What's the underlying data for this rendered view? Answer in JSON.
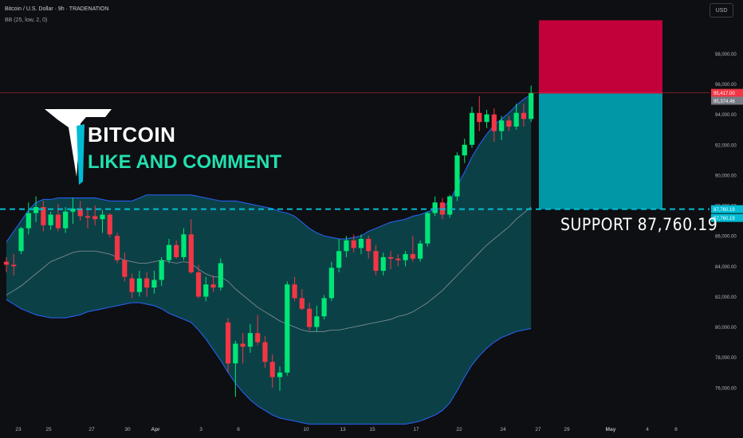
{
  "header": {
    "title": "Bitcoin / U.S. Dollar · 9h · TRADENATION",
    "indicator": "BB (25, low, 2, 0)",
    "currency": "USD"
  },
  "watermark": {
    "title": "BITCOIN",
    "subtitle": "LIKE AND COMMENT"
  },
  "support_label": "SUPPORT  87,760.19",
  "price_scale_badges": [
    {
      "label": "95,417.00",
      "value": 95417,
      "color": "#f23645"
    },
    {
      "label": "95,374.46",
      "value": 95374.46,
      "color": "#787b86"
    },
    {
      "label": "87,760.19",
      "value": 87760.19,
      "color": "#00bcd4"
    },
    {
      "label": "87,760.19",
      "value": 87760.19,
      "color": "#00bcd4"
    }
  ],
  "colors": {
    "up": "#22ab94",
    "up_bright": "#00e676",
    "down": "#f23645",
    "band_fill": "#0b4a50",
    "band_line": "#2962ff",
    "support_line": "#00bcd4",
    "target_zone": "#089981",
    "stop_zone": "#c2003a",
    "entry_zone": "#0097a7"
  },
  "chart_data": {
    "type": "candlestick",
    "instrument": "Bitcoin / U.S. Dollar",
    "timeframe": "9h",
    "y_ticks": [
      "76,000.00",
      "78,000.00",
      "80,000.00",
      "82,000.00",
      "84,000.00",
      "86,000.00",
      "88,000.00",
      "90,000.00",
      "92,000.00",
      "94,000.00",
      "96,000.00",
      "98,000.00"
    ],
    "ylim": [
      74000,
      100800
    ],
    "x_ticks": [
      "23",
      "25",
      "27",
      "30",
      "Apr",
      "3",
      "6",
      "10",
      "13",
      "15",
      "17",
      "22",
      "24",
      "27",
      "29",
      "May",
      "4",
      "6"
    ],
    "candles": [
      {
        "o": 84300,
        "h": 84600,
        "l": 83600,
        "c": 84100
      },
      {
        "o": 84100,
        "h": 84800,
        "l": 83400,
        "c": 84000
      },
      {
        "o": 85000,
        "h": 86600,
        "l": 84800,
        "c": 86500
      },
      {
        "o": 86500,
        "h": 88200,
        "l": 86100,
        "c": 87500
      },
      {
        "o": 87500,
        "h": 88600,
        "l": 86900,
        "c": 87900
      },
      {
        "o": 87900,
        "h": 88300,
        "l": 86300,
        "c": 86700
      },
      {
        "o": 86700,
        "h": 87600,
        "l": 86400,
        "c": 87400
      },
      {
        "o": 87400,
        "h": 88100,
        "l": 86300,
        "c": 86500
      },
      {
        "o": 86500,
        "h": 87900,
        "l": 86200,
        "c": 87600
      },
      {
        "o": 87600,
        "h": 88500,
        "l": 86800,
        "c": 87800
      },
      {
        "o": 87800,
        "h": 88300,
        "l": 87000,
        "c": 87300
      },
      {
        "o": 87300,
        "h": 87900,
        "l": 86500,
        "c": 87200
      },
      {
        "o": 87300,
        "h": 88000,
        "l": 86700,
        "c": 87100
      },
      {
        "o": 87100,
        "h": 87700,
        "l": 86200,
        "c": 87400
      },
      {
        "o": 87400,
        "h": 87500,
        "l": 85900,
        "c": 86100
      },
      {
        "o": 86000,
        "h": 86200,
        "l": 84200,
        "c": 84400
      },
      {
        "o": 84400,
        "h": 84900,
        "l": 83000,
        "c": 83300
      },
      {
        "o": 83200,
        "h": 83500,
        "l": 81900,
        "c": 82300
      },
      {
        "o": 82300,
        "h": 83700,
        "l": 82000,
        "c": 83200
      },
      {
        "o": 83200,
        "h": 83600,
        "l": 82000,
        "c": 82600
      },
      {
        "o": 82600,
        "h": 83700,
        "l": 82200,
        "c": 83100
      },
      {
        "o": 83100,
        "h": 84600,
        "l": 82700,
        "c": 84400
      },
      {
        "o": 84400,
        "h": 85800,
        "l": 84200,
        "c": 85400
      },
      {
        "o": 85400,
        "h": 85700,
        "l": 84500,
        "c": 84600
      },
      {
        "o": 84600,
        "h": 86500,
        "l": 84400,
        "c": 86100
      },
      {
        "o": 86100,
        "h": 87100,
        "l": 83500,
        "c": 83600
      },
      {
        "o": 83600,
        "h": 84100,
        "l": 81900,
        "c": 82000
      },
      {
        "o": 82000,
        "h": 83300,
        "l": 81700,
        "c": 82800
      },
      {
        "o": 82800,
        "h": 83400,
        "l": 82300,
        "c": 82600
      },
      {
        "o": 82600,
        "h": 84500,
        "l": 82400,
        "c": 84200
      },
      {
        "o": 80300,
        "h": 80600,
        "l": 77000,
        "c": 77600
      },
      {
        "o": 77600,
        "h": 79100,
        "l": 75400,
        "c": 78900
      },
      {
        "o": 78900,
        "h": 79600,
        "l": 77600,
        "c": 78700
      },
      {
        "o": 78700,
        "h": 80200,
        "l": 78300,
        "c": 79600
      },
      {
        "o": 79600,
        "h": 80800,
        "l": 78800,
        "c": 79000
      },
      {
        "o": 79000,
        "h": 79400,
        "l": 77300,
        "c": 77700
      },
      {
        "o": 77700,
        "h": 78200,
        "l": 76000,
        "c": 76700
      },
      {
        "o": 76700,
        "h": 77400,
        "l": 75800,
        "c": 77000
      },
      {
        "o": 77000,
        "h": 83000,
        "l": 76800,
        "c": 82800
      },
      {
        "o": 82800,
        "h": 83300,
        "l": 81700,
        "c": 81900
      },
      {
        "o": 81900,
        "h": 82500,
        "l": 81100,
        "c": 81200
      },
      {
        "o": 81200,
        "h": 81600,
        "l": 79800,
        "c": 80000
      },
      {
        "o": 80000,
        "h": 81400,
        "l": 79700,
        "c": 80700
      },
      {
        "o": 80700,
        "h": 82100,
        "l": 80500,
        "c": 81900
      },
      {
        "o": 81900,
        "h": 84300,
        "l": 81700,
        "c": 83900
      },
      {
        "o": 83900,
        "h": 85800,
        "l": 83600,
        "c": 85000
      },
      {
        "o": 85000,
        "h": 86000,
        "l": 84600,
        "c": 85700
      },
      {
        "o": 85700,
        "h": 86100,
        "l": 84900,
        "c": 85200
      },
      {
        "o": 85200,
        "h": 86100,
        "l": 84800,
        "c": 85800
      },
      {
        "o": 85800,
        "h": 86000,
        "l": 84500,
        "c": 85000
      },
      {
        "o": 85000,
        "h": 85400,
        "l": 83400,
        "c": 83700
      },
      {
        "o": 83700,
        "h": 84900,
        "l": 83400,
        "c": 84600
      },
      {
        "o": 84600,
        "h": 85000,
        "l": 83800,
        "c": 84500
      },
      {
        "o": 84500,
        "h": 84800,
        "l": 84000,
        "c": 84400
      },
      {
        "o": 84400,
        "h": 85000,
        "l": 84000,
        "c": 84800
      },
      {
        "o": 84800,
        "h": 86000,
        "l": 84300,
        "c": 84500
      },
      {
        "o": 84500,
        "h": 85700,
        "l": 84300,
        "c": 85500
      },
      {
        "o": 85500,
        "h": 87600,
        "l": 85300,
        "c": 87500
      },
      {
        "o": 87500,
        "h": 88600,
        "l": 87300,
        "c": 88200
      },
      {
        "o": 88200,
        "h": 88500,
        "l": 87100,
        "c": 87400
      },
      {
        "o": 87400,
        "h": 88700,
        "l": 87200,
        "c": 88600
      },
      {
        "o": 88600,
        "h": 91500,
        "l": 88300,
        "c": 91300
      },
      {
        "o": 91300,
        "h": 92400,
        "l": 90800,
        "c": 92000
      },
      {
        "o": 92000,
        "h": 94500,
        "l": 91800,
        "c": 94100
      },
      {
        "o": 94100,
        "h": 95200,
        "l": 92900,
        "c": 93500
      },
      {
        "o": 93500,
        "h": 94300,
        "l": 93100,
        "c": 94000
      },
      {
        "o": 94000,
        "h": 94400,
        "l": 92200,
        "c": 92900
      },
      {
        "o": 92900,
        "h": 93900,
        "l": 92300,
        "c": 93600
      },
      {
        "o": 93600,
        "h": 93900,
        "l": 92900,
        "c": 93200
      },
      {
        "o": 93200,
        "h": 94700,
        "l": 93000,
        "c": 94100
      },
      {
        "o": 94100,
        "h": 94700,
        "l": 93200,
        "c": 93700
      },
      {
        "o": 93700,
        "h": 95900,
        "l": 93500,
        "c": 95400
      }
    ],
    "bollinger": {
      "upper": [
        85600,
        86300,
        87000,
        87700,
        88200,
        88400,
        88400,
        88500,
        88500,
        88500,
        88500,
        88500,
        88500,
        88400,
        88300,
        88300,
        88300,
        88300,
        88500,
        88700,
        88700,
        88700,
        88700,
        88700,
        88700,
        88700,
        88600,
        88500,
        88400,
        88300,
        88300,
        88300,
        88200,
        88100,
        88000,
        87900,
        87800,
        87600,
        87500,
        87300,
        86900,
        86500,
        86200,
        86000,
        85900,
        85800,
        85800,
        85900,
        86000,
        86300,
        86500,
        86700,
        86900,
        87000,
        87100,
        87300,
        87400,
        87600,
        87700,
        87900,
        88300,
        89300,
        90200,
        91200,
        92000,
        92700,
        93300,
        93700,
        94100,
        94600,
        95000,
        95300
      ],
      "middle": [
        82100,
        82400,
        82700,
        83100,
        83500,
        83900,
        84300,
        84500,
        84700,
        84900,
        85000,
        85000,
        85000,
        84900,
        84800,
        84600,
        84400,
        84300,
        84200,
        84200,
        84300,
        84400,
        84300,
        84200,
        84300,
        84200,
        83800,
        83500,
        83300,
        83300,
        83000,
        82500,
        82100,
        81700,
        81300,
        81000,
        80700,
        80400,
        80200,
        80000,
        79800,
        79700,
        79700,
        79700,
        79800,
        79800,
        79900,
        80000,
        80100,
        80200,
        80300,
        80400,
        80500,
        80700,
        80800,
        81000,
        81300,
        81600,
        82000,
        82400,
        82900,
        83400,
        83900,
        84400,
        84900,
        85400,
        85800,
        86200,
        86600,
        87100,
        87500,
        87900
      ],
      "lower": [
        81800,
        81500,
        81200,
        81000,
        80800,
        80700,
        80600,
        80600,
        80600,
        80700,
        80800,
        81000,
        81100,
        81200,
        81300,
        81400,
        81500,
        81600,
        81600,
        81500,
        81400,
        81200,
        80900,
        80700,
        80500,
        80300,
        79800,
        79200,
        78500,
        77800,
        77000,
        76300,
        75700,
        75200,
        74800,
        74500,
        74200,
        74000,
        73900,
        73800,
        73700,
        73600,
        73600,
        73600,
        73600,
        73600,
        73600,
        73600,
        73600,
        73600,
        73600,
        73600,
        73600,
        73600,
        73600,
        73700,
        73800,
        74000,
        74200,
        74500,
        75000,
        75800,
        76700,
        77500,
        78100,
        78600,
        79000,
        79300,
        79500,
        79700,
        79800,
        79900
      ]
    },
    "position": {
      "entry": 95374.46,
      "target": 87760.19,
      "stop": 100200
    },
    "support_level": 87760.19,
    "last_price": 95417.0
  }
}
